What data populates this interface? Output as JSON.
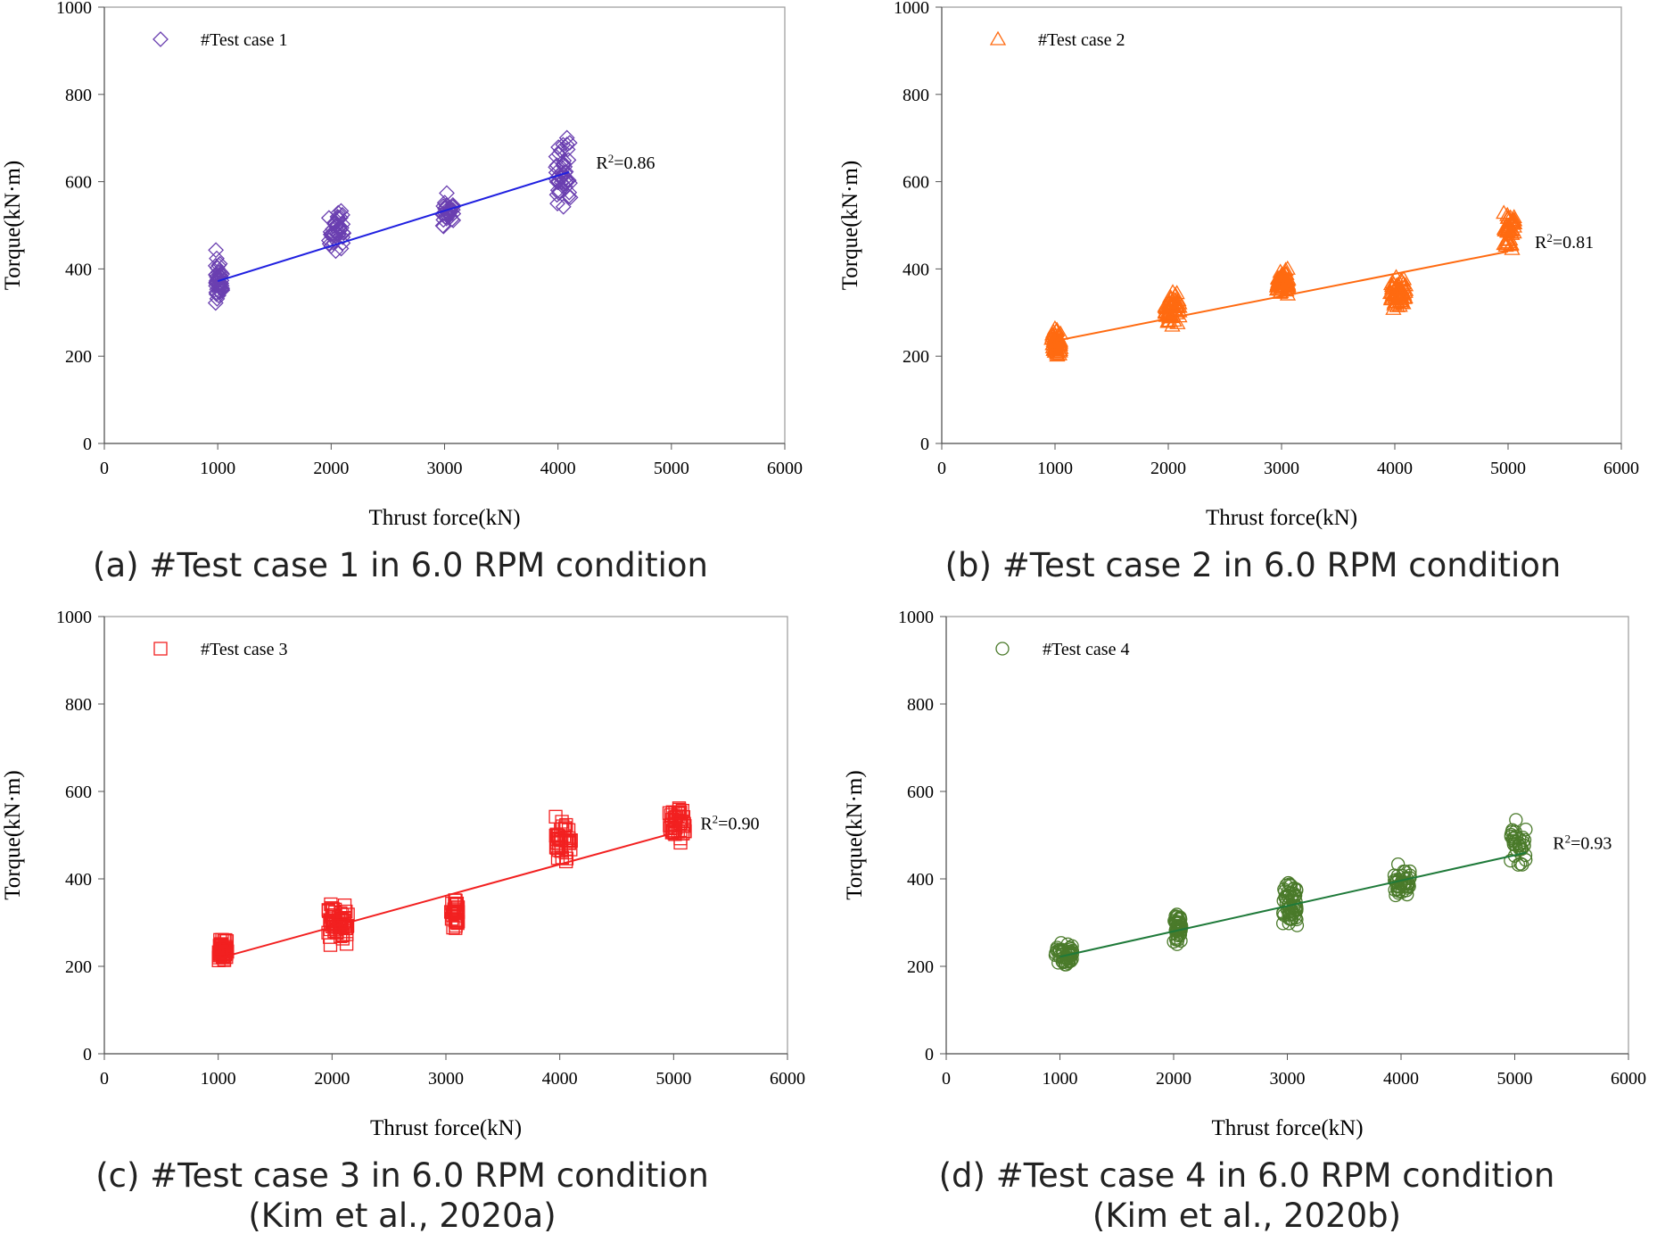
{
  "chart_data": [
    {
      "type": "scatter",
      "panel": "a",
      "caption": [
        "(a) #Test case 1 in 6.0 RPM condition"
      ],
      "xlabel": "Thrust force(kN)",
      "ylabel": "Torque(kN·m)",
      "xlim": [
        0,
        6000
      ],
      "ylim": [
        0,
        1000
      ],
      "xticks": [
        "0",
        "1000",
        "2000",
        "3000",
        "4000",
        "5000",
        "6000"
      ],
      "yticks": [
        "0",
        "200",
        "400",
        "600",
        "800",
        "1000"
      ],
      "color": "#6a3fb0",
      "line_color": "#2020e0",
      "marker": "diamond",
      "legend": "#Test case 1",
      "r2_base": "R",
      "r2_sup": "2",
      "r2_value": "=0.86",
      "fit": [
        [
          1000,
          372
        ],
        [
          4100,
          622
        ]
      ],
      "clusters": [
        {
          "x": [
            980,
            1040
          ],
          "y": [
            300,
            445
          ],
          "n": 45
        },
        {
          "x": [
            1980,
            2110
          ],
          "y": [
            425,
            545
          ],
          "n": 40
        },
        {
          "x": [
            2980,
            3080
          ],
          "y": [
            495,
            575
          ],
          "n": 32
        },
        {
          "x": [
            3970,
            4110
          ],
          "y": [
            520,
            710
          ],
          "n": 48
        }
      ]
    },
    {
      "type": "scatter",
      "panel": "b",
      "caption": [
        "(b) #Test case 2 in 6.0 RPM condition"
      ],
      "xlabel": "Thrust force(kN)",
      "ylabel": "Torque(kN·m)",
      "xlim": [
        0,
        6000
      ],
      "ylim": [
        0,
        1000
      ],
      "xticks": [
        "0",
        "1000",
        "2000",
        "3000",
        "4000",
        "5000",
        "6000"
      ],
      "yticks": [
        "0",
        "200",
        "400",
        "600",
        "800",
        "1000"
      ],
      "color": "#ff6a10",
      "line_color": "#ff6a10",
      "marker": "triangle",
      "legend": "#Test case 2",
      "r2_base": "R",
      "r2_sup": "2",
      "r2_value": "=0.81",
      "fit": [
        [
          1000,
          235
        ],
        [
          5000,
          440
        ]
      ],
      "clusters": [
        {
          "x": [
            970,
            1050
          ],
          "y": [
            200,
            265
          ],
          "n": 60
        },
        {
          "x": [
            1970,
            2100
          ],
          "y": [
            260,
            355
          ],
          "n": 55
        },
        {
          "x": [
            2960,
            3060
          ],
          "y": [
            330,
            405
          ],
          "n": 55
        },
        {
          "x": [
            3960,
            4100
          ],
          "y": [
            300,
            385
          ],
          "n": 60
        },
        {
          "x": [
            4960,
            5060
          ],
          "y": [
            440,
            540
          ],
          "n": 40
        }
      ]
    },
    {
      "type": "scatter",
      "panel": "c",
      "caption": [
        "(c) #Test case 3 in 6.0 RPM condition",
        "(Kim et al., 2020a)"
      ],
      "xlabel": "Thrust force(kN)",
      "ylabel": "Torque(kN·m)",
      "xlim": [
        0,
        6000
      ],
      "ylim": [
        0,
        1000
      ],
      "xticks": [
        "0",
        "1000",
        "2000",
        "3000",
        "4000",
        "5000",
        "6000"
      ],
      "yticks": [
        "0",
        "200",
        "400",
        "600",
        "800",
        "1000"
      ],
      "color": "#f22020",
      "line_color": "#f22020",
      "marker": "square",
      "legend": "#Test case 3",
      "r2_base": "R",
      "r2_sup": "2",
      "r2_value": "=0.90",
      "fit": [
        [
          1000,
          218
        ],
        [
          5000,
          505
        ]
      ],
      "clusters": [
        {
          "x": [
            1000,
            1080
          ],
          "y": [
            200,
            270
          ],
          "n": 50
        },
        {
          "x": [
            1960,
            2140
          ],
          "y": [
            245,
            350
          ],
          "n": 60
        },
        {
          "x": [
            3040,
            3110
          ],
          "y": [
            280,
            355
          ],
          "n": 30
        },
        {
          "x": [
            3960,
            4100
          ],
          "y": [
            430,
            550
          ],
          "n": 40
        },
        {
          "x": [
            4960,
            5100
          ],
          "y": [
            480,
            570
          ],
          "n": 45
        }
      ]
    },
    {
      "type": "scatter",
      "panel": "d",
      "caption": [
        "(d) #Test case 4 in 6.0 RPM condition",
        "(Kim et al., 2020b)"
      ],
      "xlabel": "Thrust force(kN)",
      "ylabel": "Torque(kN·m)",
      "xlim": [
        0,
        6000
      ],
      "ylim": [
        0,
        1000
      ],
      "xticks": [
        "0",
        "1000",
        "2000",
        "3000",
        "4000",
        "5000",
        "6000"
      ],
      "yticks": [
        "0",
        "200",
        "400",
        "600",
        "800",
        "1000"
      ],
      "color": "#4a7a2a",
      "line_color": "#1f7a3a",
      "marker": "circle",
      "legend": "#Test case 4",
      "r2_base": "R",
      "r2_sup": "2",
      "r2_value": "=0.93",
      "fit": [
        [
          1000,
          222
        ],
        [
          5100,
          460
        ]
      ],
      "clusters": [
        {
          "x": [
            960,
            1110
          ],
          "y": [
            200,
            255
          ],
          "n": 45
        },
        {
          "x": [
            2000,
            2070
          ],
          "y": [
            245,
            330
          ],
          "n": 45
        },
        {
          "x": [
            2960,
            3090
          ],
          "y": [
            285,
            400
          ],
          "n": 60
        },
        {
          "x": [
            3930,
            4080
          ],
          "y": [
            340,
            450
          ],
          "n": 40
        },
        {
          "x": [
            4960,
            5100
          ],
          "y": [
            410,
            545
          ],
          "n": 35
        }
      ]
    }
  ]
}
